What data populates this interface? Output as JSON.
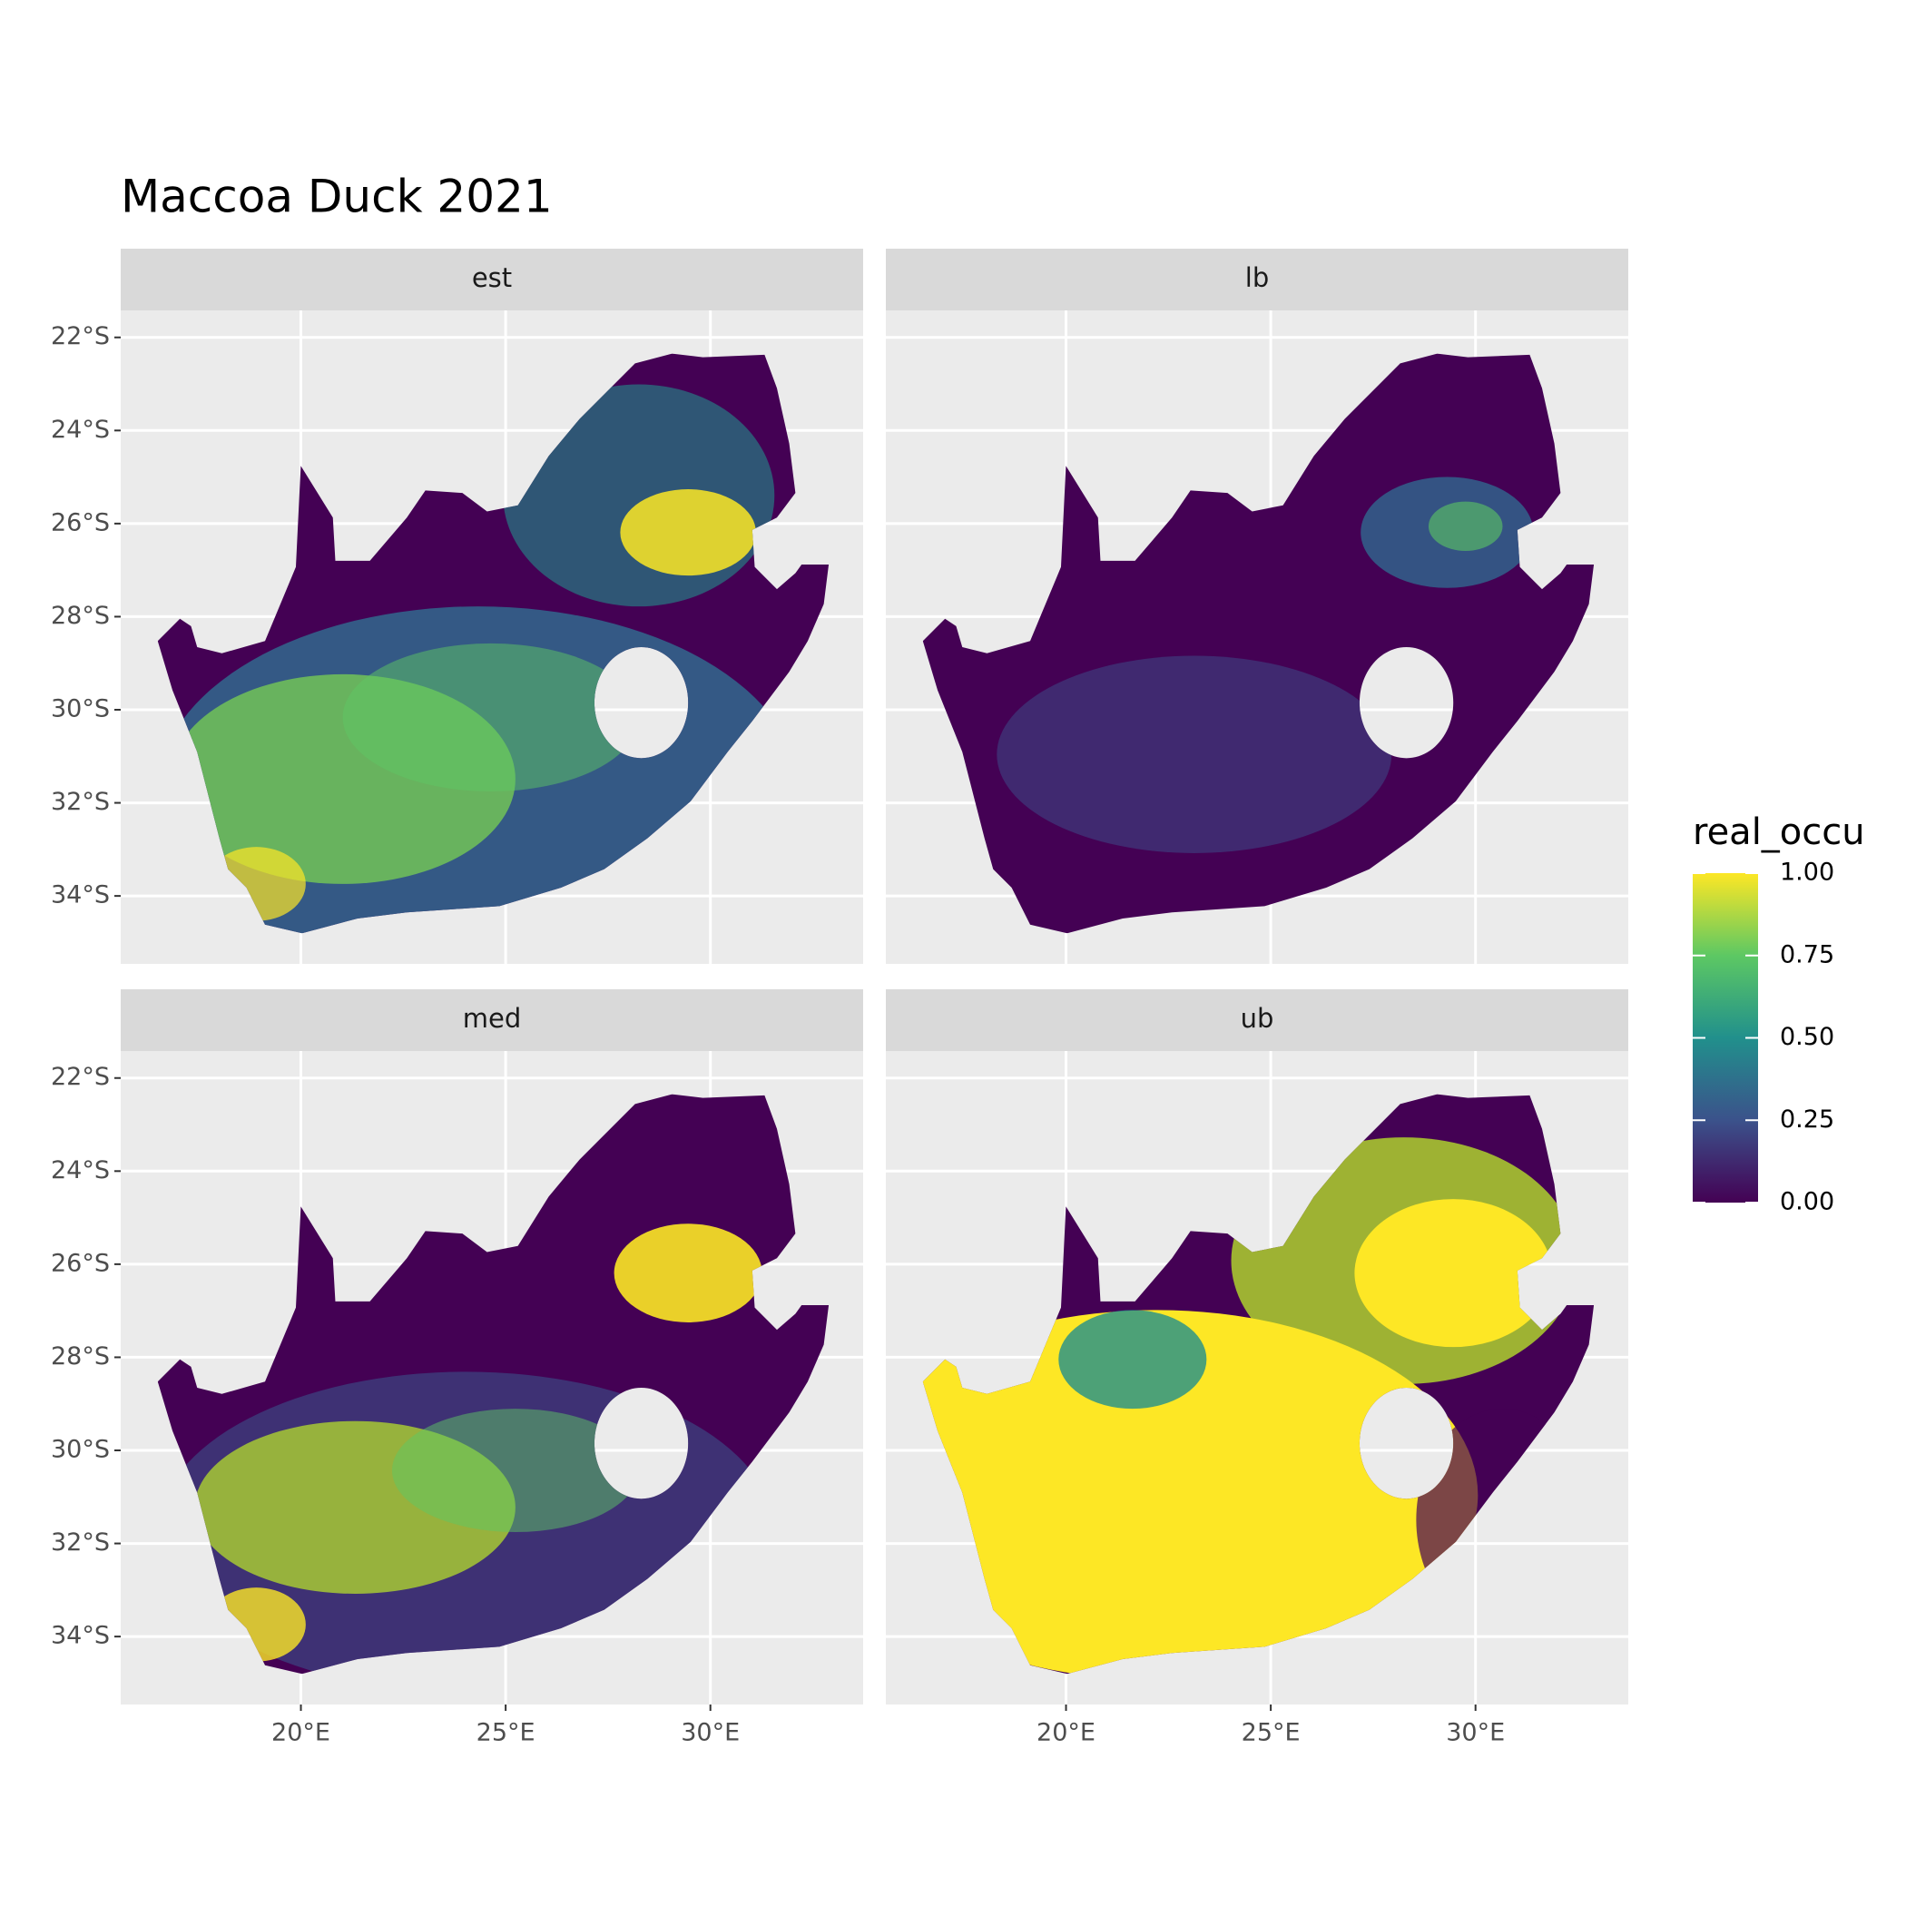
{
  "chart_data": {
    "type": "map",
    "title": "Maccoa Duck 2021",
    "facets": [
      "est",
      "lb",
      "med",
      "ub"
    ],
    "xlim": [
      15.6,
      33.73
    ],
    "ylim": [
      -35.46,
      -21.42
    ],
    "xticks": [
      {
        "value": 20,
        "label": "20°E"
      },
      {
        "value": 25,
        "label": "25°E"
      },
      {
        "value": 30,
        "label": "30°E"
      }
    ],
    "yticks": [
      {
        "value": -22,
        "label": "22°S"
      },
      {
        "value": -24,
        "label": "24°S"
      },
      {
        "value": -26,
        "label": "26°S"
      },
      {
        "value": -28,
        "label": "28°S"
      },
      {
        "value": -30,
        "label": "30°S"
      },
      {
        "value": -32,
        "label": "32°S"
      },
      {
        "value": -34,
        "label": "34°S"
      }
    ],
    "legend": {
      "title": "real_occu",
      "lim": [
        0,
        1
      ],
      "ticks": [
        {
          "value": 0,
          "label": "0.00"
        },
        {
          "value": 0.25,
          "label": "0.25"
        },
        {
          "value": 0.5,
          "label": "0.50"
        },
        {
          "value": 0.75,
          "label": "0.75"
        },
        {
          "value": 1,
          "label": "1.00"
        }
      ]
    }
  }
}
